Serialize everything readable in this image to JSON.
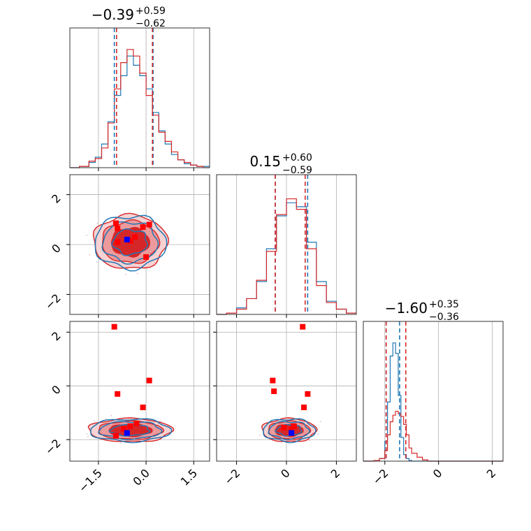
{
  "colors": {
    "blue": "#1f77b4",
    "red": "#d62728",
    "marker_red": "#ff0000",
    "marker_blue": "#0000ff",
    "grid": "#b0b0b0"
  },
  "chart_data": {
    "type": "corner",
    "parameters": [
      {
        "range": [
          -2.4,
          2.0
        ],
        "ticks": [
          -1.5,
          0.0,
          1.5
        ],
        "tick_labels": [
          "−1.5",
          "0.0",
          "1.5"
        ],
        "title_main": "−0.39",
        "title_sup": "+0.59",
        "title_sub": "−0.62",
        "quantiles_blue": [
          -1.0,
          0.22
        ],
        "quantiles_red": [
          -0.93,
          0.2
        ]
      },
      {
        "range": [
          -2.8,
          2.8
        ],
        "ticks": [
          -2,
          0,
          2
        ],
        "tick_labels": [
          "−2",
          "0",
          "2"
        ],
        "title_main": "0.15",
        "title_sup": "+0.60",
        "title_sub": "−0.59",
        "quantiles_blue": [
          -0.45,
          0.85
        ],
        "quantiles_red": [
          -0.45,
          0.75
        ]
      },
      {
        "range": [
          -2.8,
          2.4
        ],
        "ticks": [
          -2,
          0,
          2
        ],
        "tick_labels": [
          "−2",
          "0",
          "2"
        ],
        "title_main": "−1.60",
        "title_sup": "+0.35",
        "title_sub": "−0.36",
        "quantiles_blue": [
          -1.95,
          -1.45
        ],
        "quantiles_red": [
          -1.95,
          -1.22
        ]
      }
    ],
    "histograms": [
      {
        "x": [
          -2.4,
          -2.1,
          -1.8,
          -1.6,
          -1.4,
          -1.2,
          -1.0,
          -0.8,
          -0.6,
          -0.4,
          -0.2,
          0.0,
          0.2,
          0.4,
          0.6,
          0.8,
          1.0,
          1.2,
          1.4,
          1.6,
          1.8,
          2.0
        ],
        "blue": [
          0,
          0.01,
          0.04,
          0.08,
          0.18,
          0.35,
          0.55,
          0.7,
          0.85,
          0.78,
          0.7,
          0.6,
          0.42,
          0.28,
          0.18,
          0.1,
          0.06,
          0.03,
          0.02,
          0.01,
          0.01,
          0
        ],
        "red": [
          0,
          0.01,
          0.05,
          0.07,
          0.15,
          0.34,
          0.6,
          0.8,
          0.9,
          0.85,
          0.72,
          0.55,
          0.4,
          0.27,
          0.2,
          0.12,
          0.06,
          0.04,
          0.02,
          0.01,
          0.0,
          0
        ]
      },
      {
        "x": [
          -2.8,
          -2.4,
          -2.0,
          -1.6,
          -1.2,
          -0.8,
          -0.4,
          0.0,
          0.4,
          0.8,
          1.2,
          1.6,
          2.0,
          2.4,
          2.8
        ],
        "blue": [
          0,
          0.01,
          0.05,
          0.12,
          0.25,
          0.5,
          0.75,
          0.85,
          0.82,
          0.55,
          0.25,
          0.1,
          0.04,
          0.01,
          0
        ],
        "red": [
          0,
          0.01,
          0.04,
          0.12,
          0.26,
          0.48,
          0.76,
          0.88,
          0.8,
          0.5,
          0.22,
          0.09,
          0.04,
          0.01,
          0
        ]
      },
      {
        "x": [
          -2.8,
          -2.4,
          -2.2,
          -2.0,
          -1.9,
          -1.8,
          -1.7,
          -1.6,
          -1.5,
          -1.4,
          -1.3,
          -1.2,
          -1.1,
          -1.0,
          -0.8,
          -0.6,
          -0.4,
          2.4
        ],
        "blue": [
          0,
          0.005,
          0.02,
          0.15,
          0.45,
          0.8,
          0.9,
          0.82,
          0.5,
          0.18,
          0.05,
          0.02,
          0.005,
          0,
          0,
          0,
          0,
          0
        ],
        "red": [
          0,
          0.005,
          0.02,
          0.08,
          0.2,
          0.3,
          0.35,
          0.38,
          0.36,
          0.34,
          0.28,
          0.2,
          0.1,
          0.06,
          0.03,
          0.01,
          0.0,
          0
        ]
      }
    ],
    "pairs": [
      {
        "row": 1,
        "col": 0,
        "contour_center": [
          -0.5,
          0.1
        ],
        "contour_sd": [
          0.75,
          0.7
        ],
        "red_markers": [
          [
            -0.95,
            0.85
          ],
          [
            -0.9,
            0.65
          ],
          [
            -0.9,
            0.1
          ],
          [
            -0.5,
            0.15
          ],
          [
            -0.1,
            0.7
          ],
          [
            0.1,
            0.8
          ],
          [
            0.0,
            -0.5
          ],
          [
            -0.35,
            0.3
          ]
        ],
        "blue_markers": [
          [
            -0.6,
            0.2
          ]
        ]
      },
      {
        "row": 2,
        "col": 0,
        "contour_center": [
          -0.5,
          -1.65
        ],
        "contour_sd": [
          0.85,
          0.28
        ],
        "red_markers": [
          [
            -1.0,
            2.2
          ],
          [
            -0.9,
            -0.3
          ],
          [
            0.1,
            0.2
          ],
          [
            -0.1,
            -0.8
          ],
          [
            -0.5,
            -1.5
          ],
          [
            -0.7,
            -1.6
          ],
          [
            -0.95,
            -1.85
          ],
          [
            -0.3,
            -1.4
          ]
        ],
        "blue_markers": [
          [
            -0.6,
            -1.75
          ]
        ]
      },
      {
        "row": 2,
        "col": 1,
        "contour_center": [
          0.1,
          -1.65
        ],
        "contour_sd": [
          0.7,
          0.28
        ],
        "red_markers": [
          [
            0.65,
            2.2
          ],
          [
            -0.55,
            0.2
          ],
          [
            -0.5,
            -0.2
          ],
          [
            0.85,
            -0.3
          ],
          [
            0.7,
            -0.8
          ],
          [
            0.3,
            -1.5
          ],
          [
            0.2,
            -1.6
          ],
          [
            -0.1,
            -1.55
          ]
        ],
        "blue_markers": [
          [
            0.2,
            -1.75
          ]
        ]
      }
    ]
  }
}
